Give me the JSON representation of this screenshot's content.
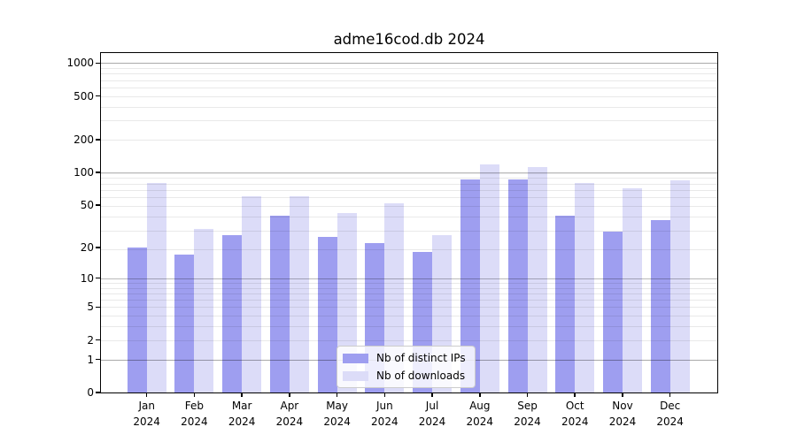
{
  "title": "adme16cod.db 2024",
  "legend": {
    "items": [
      {
        "label": "Nb of distinct IPs",
        "color": "#9e9ef0"
      },
      {
        "label": "Nb of downloads",
        "color": "#dcdcf8"
      }
    ]
  },
  "y_axis": {
    "tick_labels": [
      "0",
      "1",
      "2",
      "5",
      "10",
      "20",
      "50",
      "100",
      "200",
      "500",
      "1000"
    ]
  },
  "chart_data": {
    "type": "bar",
    "title": "adme16cod.db 2024",
    "categories": [
      "Jan 2024",
      "Feb 2024",
      "Mar 2024",
      "Apr 2024",
      "May 2024",
      "Jun 2024",
      "Jul 2024",
      "Aug 2024",
      "Sep 2024",
      "Oct 2024",
      "Nov 2024",
      "Dec 2024"
    ],
    "series": [
      {
        "name": "Nb of distinct IPs",
        "color": "#9e9ef0",
        "values": [
          20,
          17,
          26,
          40,
          25,
          22,
          18,
          87,
          87,
          40,
          28,
          36
        ]
      },
      {
        "name": "Nb of downloads",
        "color": "#dcdcf8",
        "values": [
          80,
          30,
          60,
          60,
          42,
          52,
          26,
          118,
          113,
          80,
          72,
          85
        ]
      }
    ],
    "xlabel": "",
    "ylabel": "",
    "yscale": "log1p",
    "ytick_values": [
      0,
      1,
      2,
      5,
      10,
      20,
      50,
      100,
      200,
      500,
      1000
    ],
    "ylim": [
      0,
      1236
    ],
    "grid": true,
    "grid_on_top_of_bars": true,
    "legend_position": "lower center inside plot"
  }
}
